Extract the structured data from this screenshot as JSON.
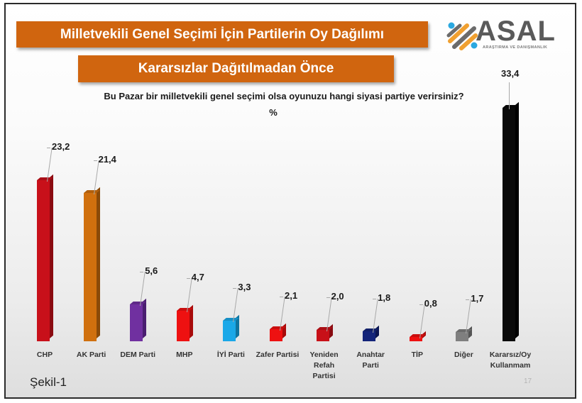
{
  "header": {
    "title": "Milletvekili Genel Seçimi İçin Partilerin Oy Dağılımı",
    "subtitle": "Kararsızlar Dağıtılmadan Önce"
  },
  "logo": {
    "name": "ASAL",
    "tagline": "ARAŞTIRMA VE DANIŞMANLIK",
    "icon": "asal-logo-icon",
    "colors": [
      "#f0a030",
      "#6b6b6b",
      "#2aa8e0"
    ]
  },
  "question": "Bu Pazar bir milletvekili genel seçimi olsa oyunuzu  hangi siyasi partiye verirsiniz?",
  "unit": "%",
  "footer": {
    "figure_label": "Şekil-1",
    "page_number": "17"
  },
  "chart_data": {
    "type": "bar",
    "title": "Milletvekili Genel Seçimi İçin Partilerin Oy Dağılımı",
    "subtitle": "Kararsızlar Dağıtılmadan Önce",
    "question": "Bu Pazar bir milletvekili genel seçimi olsa oyunuzu hangi siyasi partiye verirsiniz?",
    "xlabel": "",
    "ylabel": "%",
    "grid": false,
    "legend": "none",
    "style": "3d-column",
    "categories": [
      "CHP",
      "AK Parti",
      "DEM Parti",
      "MHP",
      "İYİ Parti",
      "Zafer Partisi",
      "Yeniden Refah Partisi",
      "Anahtar Parti",
      "TİP",
      "Diğer",
      "Kararsız/Oy Kullanmam"
    ],
    "values": [
      23.2,
      21.4,
      5.6,
      4.7,
      3.3,
      2.1,
      2.0,
      1.8,
      0.8,
      1.7,
      33.4
    ],
    "value_labels": [
      "23,2",
      "21,4",
      "5,6",
      "4,7",
      "3,3",
      "2,1",
      "2,0",
      "1,8",
      "0,8",
      "1,7",
      "33,4"
    ],
    "category_lines": [
      [
        "CHP"
      ],
      [
        "AK Parti"
      ],
      [
        "DEM Parti"
      ],
      [
        "MHP"
      ],
      [
        "İYİ Parti"
      ],
      [
        "Zafer Partisi"
      ],
      [
        "Yeniden",
        "Refah",
        "Partisi"
      ],
      [
        "Anahtar",
        "Parti"
      ],
      [
        "TİP"
      ],
      [
        "Diğer"
      ],
      [
        "Kararsız/Oy",
        "Kullanmam"
      ]
    ],
    "colors": [
      "#c8101a",
      "#d0700e",
      "#7030a0",
      "#ee1111",
      "#1aa8e8",
      "#ee1111",
      "#c81018",
      "#13247a",
      "#ee1111",
      "#7f7f7f",
      "#0a0a0a"
    ],
    "side_colors": [
      "#8a0a10",
      "#8a4a08",
      "#4a1e70",
      "#a80a0a",
      "#0f74a0",
      "#a80a0a",
      "#880a10",
      "#0a1550",
      "#a80a0a",
      "#555555",
      "#000000"
    ],
    "ylim": [
      0,
      35
    ]
  }
}
